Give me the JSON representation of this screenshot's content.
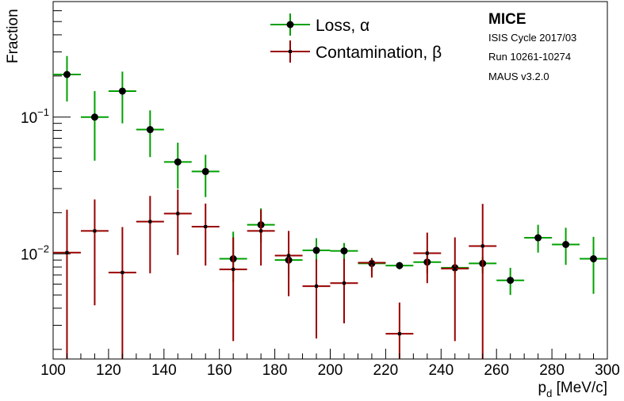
{
  "chart_data": {
    "type": "scatter",
    "xlabel_main": "p",
    "xlabel_sub": "d",
    "xlabel_unit": " [MeV/c]",
    "ylabel": "Fraction",
    "xlim": [
      100,
      300
    ],
    "ylim": [
      0.0017,
      0.7
    ],
    "y_scale": "log",
    "grid": false,
    "legend_position": "top-center",
    "x_ticks": [
      100,
      120,
      140,
      160,
      180,
      200,
      220,
      240,
      260,
      280,
      300
    ],
    "y_tick_labels": [
      {
        "value": 0.1,
        "base": "10",
        "exp": "−1"
      },
      {
        "value": 0.01,
        "base": "10",
        "exp": "−2"
      }
    ],
    "info": {
      "title": "MICE",
      "lines": [
        "ISIS Cycle 2017/03",
        "Run 10261-10274",
        "MAUS v3.2.0"
      ]
    },
    "series": [
      {
        "name": "Loss, α",
        "color": "#00a000",
        "marker": "circle",
        "points": [
          {
            "x": 105,
            "xerr": 5,
            "y": 0.205,
            "ylo": 0.13,
            "yhi": 0.28
          },
          {
            "x": 115,
            "xerr": 5,
            "y": 0.1,
            "ylo": 0.048,
            "yhi": 0.155
          },
          {
            "x": 125,
            "xerr": 5,
            "y": 0.155,
            "ylo": 0.09,
            "yhi": 0.215
          },
          {
            "x": 135,
            "xerr": 5,
            "y": 0.081,
            "ylo": 0.051,
            "yhi": 0.112
          },
          {
            "x": 145,
            "xerr": 5,
            "y": 0.047,
            "ylo": 0.03,
            "yhi": 0.065
          },
          {
            "x": 155,
            "xerr": 5,
            "y": 0.04,
            "ylo": 0.026,
            "yhi": 0.053
          },
          {
            "x": 165,
            "xerr": 5,
            "y": 0.0092,
            "ylo": 0.0062,
            "yhi": 0.0145
          },
          {
            "x": 175,
            "xerr": 5,
            "y": 0.0163,
            "ylo": 0.012,
            "yhi": 0.0215
          },
          {
            "x": 185,
            "xerr": 5,
            "y": 0.009,
            "ylo": 0.0068,
            "yhi": 0.0105
          },
          {
            "x": 195,
            "xerr": 5,
            "y": 0.0106,
            "ylo": 0.0085,
            "yhi": 0.013
          },
          {
            "x": 205,
            "xerr": 5,
            "y": 0.0105,
            "ylo": 0.0088,
            "yhi": 0.012
          },
          {
            "x": 215,
            "xerr": 5,
            "y": 0.0085,
            "ylo": 0.0074,
            "yhi": 0.0093
          },
          {
            "x": 225,
            "xerr": 5,
            "y": 0.0082,
            "ylo": 0.0077,
            "yhi": 0.0087
          },
          {
            "x": 235,
            "xerr": 5,
            "y": 0.0087,
            "ylo": 0.0072,
            "yhi": 0.0103
          },
          {
            "x": 245,
            "xerr": 5,
            "y": 0.0079,
            "ylo": 0.0072,
            "yhi": 0.0084
          },
          {
            "x": 255,
            "xerr": 5,
            "y": 0.0085,
            "ylo": 0.0072,
            "yhi": 0.0095
          },
          {
            "x": 265,
            "xerr": 5,
            "y": 0.0064,
            "ylo": 0.005,
            "yhi": 0.0079
          },
          {
            "x": 275,
            "xerr": 5,
            "y": 0.0131,
            "ylo": 0.0102,
            "yhi": 0.0163
          },
          {
            "x": 285,
            "xerr": 5,
            "y": 0.0117,
            "ylo": 0.0083,
            "yhi": 0.0155
          },
          {
            "x": 295,
            "xerr": 5,
            "y": 0.0092,
            "ylo": 0.0051,
            "yhi": 0.0133
          }
        ]
      },
      {
        "name": "Contamination, β",
        "color": "#990000",
        "marker": "cross",
        "points": [
          {
            "x": 105,
            "xerr": 5,
            "y": 0.0102,
            "ylo": 0.0017,
            "yhi": 0.021
          },
          {
            "x": 115,
            "xerr": 5,
            "y": 0.0147,
            "ylo": 0.0042,
            "yhi": 0.025
          },
          {
            "x": 125,
            "xerr": 5,
            "y": 0.0073,
            "ylo": 0.0017,
            "yhi": 0.0157
          },
          {
            "x": 135,
            "xerr": 5,
            "y": 0.0172,
            "ylo": 0.0072,
            "yhi": 0.0265
          },
          {
            "x": 145,
            "xerr": 5,
            "y": 0.0197,
            "ylo": 0.0098,
            "yhi": 0.0295
          },
          {
            "x": 155,
            "xerr": 5,
            "y": 0.0158,
            "ylo": 0.0082,
            "yhi": 0.0233
          },
          {
            "x": 165,
            "xerr": 5,
            "y": 0.0077,
            "ylo": 0.0023,
            "yhi": 0.0132
          },
          {
            "x": 175,
            "xerr": 5,
            "y": 0.0147,
            "ylo": 0.0082,
            "yhi": 0.021
          },
          {
            "x": 185,
            "xerr": 5,
            "y": 0.0097,
            "ylo": 0.0049,
            "yhi": 0.0147
          },
          {
            "x": 195,
            "xerr": 5,
            "y": 0.0058,
            "ylo": 0.0024,
            "yhi": 0.0091
          },
          {
            "x": 205,
            "xerr": 5,
            "y": 0.0061,
            "ylo": 0.0031,
            "yhi": 0.0092
          },
          {
            "x": 215,
            "xerr": 5,
            "y": 0.0086,
            "ylo": 0.0067,
            "yhi": 0.0093
          },
          {
            "x": 225,
            "xerr": 5,
            "y": 0.0026,
            "ylo": 0.0017,
            "yhi": 0.0044
          },
          {
            "x": 235,
            "xerr": 5,
            "y": 0.0101,
            "ylo": 0.0061,
            "yhi": 0.0143
          },
          {
            "x": 245,
            "xerr": 5,
            "y": 0.0078,
            "ylo": 0.0023,
            "yhi": 0.0132
          },
          {
            "x": 255,
            "xerr": 5,
            "y": 0.0114,
            "ylo": 0.0017,
            "yhi": 0.0232
          }
        ]
      }
    ]
  }
}
